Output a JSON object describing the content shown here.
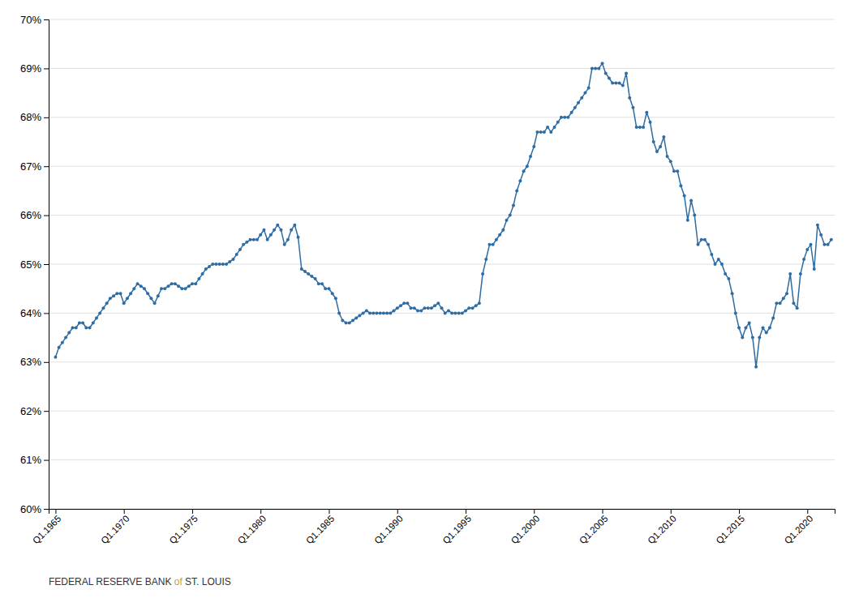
{
  "chart_data": {
    "type": "line",
    "xlim": [
      1964.5,
      2022.0
    ],
    "xticks": [
      {
        "value": 1965,
        "label": "Q1.1965"
      },
      {
        "value": 1970,
        "label": "Q1.1970"
      },
      {
        "value": 1975,
        "label": "Q1.1975"
      },
      {
        "value": 1980,
        "label": "Q1.1980"
      },
      {
        "value": 1985,
        "label": "Q1.1985"
      },
      {
        "value": 1990,
        "label": "Q1.1990"
      },
      {
        "value": 1995,
        "label": "Q1.1995"
      },
      {
        "value": 2000,
        "label": "Q1.2000"
      },
      {
        "value": 2005,
        "label": "Q1.2005"
      },
      {
        "value": 2010,
        "label": "Q1.2010"
      },
      {
        "value": 2015,
        "label": "Q1.2015"
      },
      {
        "value": 2020,
        "label": "Q1.2020"
      }
    ],
    "ylim": [
      60.0,
      70.0
    ],
    "yticks": [
      {
        "value": 60,
        "label": "60%"
      },
      {
        "value": 61,
        "label": "61%"
      },
      {
        "value": 62,
        "label": "62%"
      },
      {
        "value": 63,
        "label": "63%"
      },
      {
        "value": 64,
        "label": "64%"
      },
      {
        "value": 65,
        "label": "65%"
      },
      {
        "value": 66,
        "label": "66%"
      },
      {
        "value": 67,
        "label": "67%"
      },
      {
        "value": 68,
        "label": "68%"
      },
      {
        "value": 69,
        "label": "69%"
      },
      {
        "value": 70,
        "label": "70%"
      }
    ],
    "grid": true,
    "color": "#2E6DA4",
    "marker": "circle",
    "x": [
      1965.0,
      1965.25,
      1965.5,
      1965.75,
      1966.0,
      1966.25,
      1966.5,
      1966.75,
      1967.0,
      1967.25,
      1967.5,
      1967.75,
      1968.0,
      1968.25,
      1968.5,
      1968.75,
      1969.0,
      1969.25,
      1969.5,
      1969.75,
      1970.0,
      1970.25,
      1970.5,
      1970.75,
      1971.0,
      1971.25,
      1971.5,
      1971.75,
      1972.0,
      1972.25,
      1972.5,
      1972.75,
      1973.0,
      1973.25,
      1973.5,
      1973.75,
      1974.0,
      1974.25,
      1974.5,
      1974.75,
      1975.0,
      1975.25,
      1975.5,
      1975.75,
      1976.0,
      1976.25,
      1976.5,
      1976.75,
      1977.0,
      1977.25,
      1977.5,
      1977.75,
      1978.0,
      1978.25,
      1978.5,
      1978.75,
      1979.0,
      1979.25,
      1979.5,
      1979.75,
      1980.0,
      1980.25,
      1980.5,
      1980.75,
      1981.0,
      1981.25,
      1981.5,
      1981.75,
      1982.0,
      1982.25,
      1982.5,
      1982.75,
      1983.0,
      1983.25,
      1983.5,
      1983.75,
      1984.0,
      1984.25,
      1984.5,
      1984.75,
      1985.0,
      1985.25,
      1985.5,
      1985.75,
      1986.0,
      1986.25,
      1986.5,
      1986.75,
      1987.0,
      1987.25,
      1987.5,
      1987.75,
      1988.0,
      1988.25,
      1988.5,
      1988.75,
      1989.0,
      1989.25,
      1989.5,
      1989.75,
      1990.0,
      1990.25,
      1990.5,
      1990.75,
      1991.0,
      1991.25,
      1991.5,
      1991.75,
      1992.0,
      1992.25,
      1992.5,
      1992.75,
      1993.0,
      1993.25,
      1993.5,
      1993.75,
      1994.0,
      1994.25,
      1994.5,
      1994.75,
      1995.0,
      1995.25,
      1995.5,
      1995.75,
      1996.0,
      1996.25,
      1996.5,
      1996.75,
      1997.0,
      1997.25,
      1997.5,
      1997.75,
      1998.0,
      1998.25,
      1998.5,
      1998.75,
      1999.0,
      1999.25,
      1999.5,
      1999.75,
      2000.0,
      2000.25,
      2000.5,
      2000.75,
      2001.0,
      2001.25,
      2001.5,
      2001.75,
      2002.0,
      2002.25,
      2002.5,
      2002.75,
      2003.0,
      2003.25,
      2003.5,
      2003.75,
      2004.0,
      2004.25,
      2004.5,
      2004.75,
      2005.0,
      2005.25,
      2005.5,
      2005.75,
      2006.0,
      2006.25,
      2006.5,
      2006.75,
      2007.0,
      2007.25,
      2007.5,
      2007.75,
      2008.0,
      2008.25,
      2008.5,
      2008.75,
      2009.0,
      2009.25,
      2009.5,
      2009.75,
      2010.0,
      2010.25,
      2010.5,
      2010.75,
      2011.0,
      2011.25,
      2011.5,
      2011.75,
      2012.0,
      2012.25,
      2012.5,
      2012.75,
      2013.0,
      2013.25,
      2013.5,
      2013.75,
      2014.0,
      2014.25,
      2014.5,
      2014.75,
      2015.0,
      2015.25,
      2015.5,
      2015.75,
      2016.0,
      2016.25,
      2016.5,
      2016.75,
      2017.0,
      2017.25,
      2017.5,
      2017.75,
      2018.0,
      2018.25,
      2018.5,
      2018.75,
      2019.0,
      2019.25,
      2019.5,
      2019.75,
      2020.0,
      2020.25,
      2020.5,
      2020.75,
      2021.0,
      2021.25,
      2021.5,
      2021.75
    ],
    "values": [
      63.1,
      63.3,
      63.4,
      63.5,
      63.6,
      63.7,
      63.7,
      63.8,
      63.8,
      63.7,
      63.7,
      63.8,
      63.9,
      64.0,
      64.1,
      64.2,
      64.3,
      64.35,
      64.4,
      64.4,
      64.2,
      64.3,
      64.4,
      64.5,
      64.6,
      64.55,
      64.5,
      64.4,
      64.3,
      64.2,
      64.35,
      64.5,
      64.5,
      64.55,
      64.6,
      64.6,
      64.55,
      64.5,
      64.5,
      64.55,
      64.6,
      64.6,
      64.7,
      64.8,
      64.9,
      64.95,
      65.0,
      65.0,
      65.0,
      65.0,
      65.0,
      65.05,
      65.1,
      65.2,
      65.3,
      65.4,
      65.45,
      65.5,
      65.5,
      65.5,
      65.6,
      65.7,
      65.5,
      65.6,
      65.7,
      65.8,
      65.7,
      65.4,
      65.5,
      65.7,
      65.8,
      65.55,
      64.9,
      64.85,
      64.8,
      64.75,
      64.7,
      64.6,
      64.6,
      64.5,
      64.5,
      64.4,
      64.3,
      64.0,
      63.85,
      63.8,
      63.8,
      63.85,
      63.9,
      63.95,
      64.0,
      64.05,
      64.0,
      64.0,
      64.0,
      64.0,
      64.0,
      64.0,
      64.0,
      64.05,
      64.1,
      64.15,
      64.2,
      64.2,
      64.1,
      64.1,
      64.05,
      64.05,
      64.1,
      64.1,
      64.1,
      64.15,
      64.2,
      64.1,
      64.0,
      64.05,
      64.0,
      64.0,
      64.0,
      64.0,
      64.05,
      64.1,
      64.1,
      64.15,
      64.2,
      64.8,
      65.1,
      65.4,
      65.4,
      65.5,
      65.6,
      65.7,
      65.9,
      66.0,
      66.2,
      66.5,
      66.7,
      66.9,
      67.0,
      67.2,
      67.4,
      67.7,
      67.7,
      67.7,
      67.8,
      67.7,
      67.8,
      67.9,
      68.0,
      68.0,
      68.0,
      68.1,
      68.2,
      68.3,
      68.4,
      68.5,
      68.6,
      69.0,
      69.0,
      69.0,
      69.1,
      68.9,
      68.8,
      68.7,
      68.7,
      68.7,
      68.65,
      68.9,
      68.4,
      68.2,
      67.8,
      67.8,
      67.8,
      68.1,
      67.9,
      67.5,
      67.3,
      67.4,
      67.6,
      67.2,
      67.1,
      66.9,
      66.9,
      66.6,
      66.4,
      65.9,
      66.3,
      66.0,
      65.4,
      65.5,
      65.5,
      65.4,
      65.2,
      65.0,
      65.1,
      65.0,
      64.8,
      64.7,
      64.4,
      64.0,
      63.7,
      63.5,
      63.7,
      63.8,
      63.5,
      62.9,
      63.5,
      63.7,
      63.6,
      63.7,
      63.9,
      64.2,
      64.2,
      64.3,
      64.4,
      64.8,
      64.2,
      64.1,
      64.8,
      65.1,
      65.3,
      65.4,
      64.9,
      65.8,
      65.6,
      65.4,
      65.4,
      65.5
    ],
    "annotations": [
      {
        "text": "FEDERAL RESERVE BANK ",
        "color": "#333333"
      },
      {
        "text": "of",
        "color": "#C9A227"
      },
      {
        "text": " ST. LOUIS",
        "color": "#333333"
      }
    ]
  }
}
